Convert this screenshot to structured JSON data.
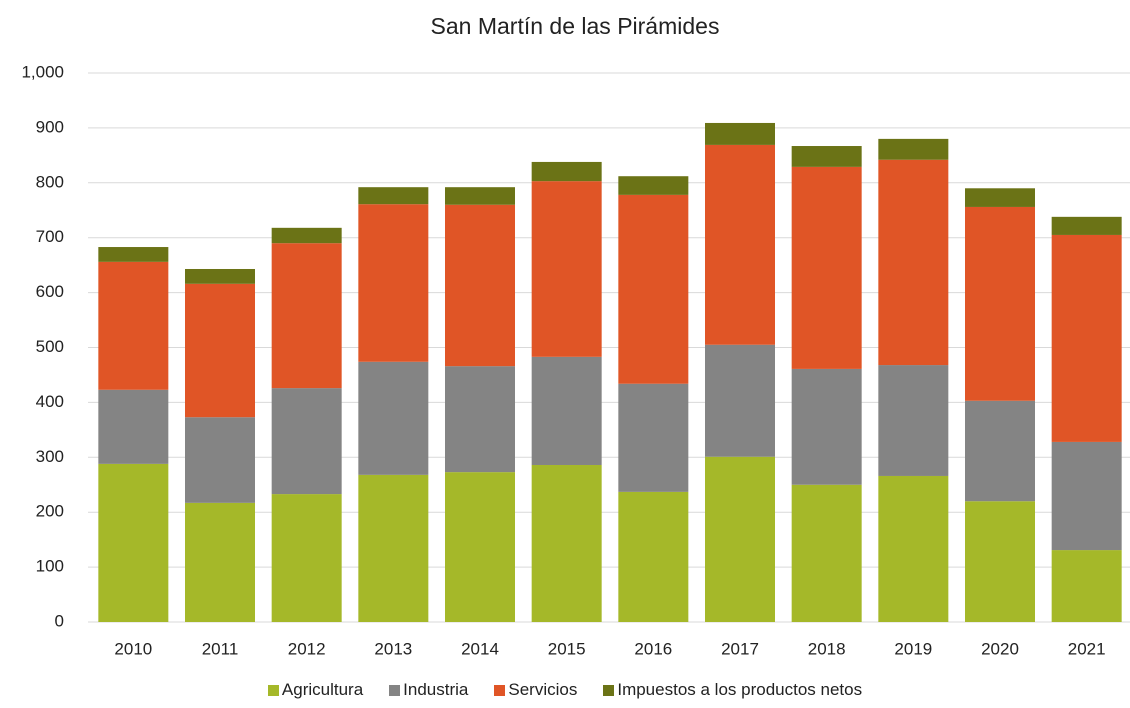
{
  "chart_data": {
    "type": "stacked_bar",
    "title": "San Martín de las Pirámides",
    "categories": [
      "2010",
      "2011",
      "2012",
      "2013",
      "2014",
      "2015",
      "2016",
      "2017",
      "2018",
      "2019",
      "2020",
      "2021"
    ],
    "series": [
      {
        "name": "Agricultura",
        "color": "#a5b829",
        "values": [
          288,
          217,
          233,
          268,
          273,
          286,
          237,
          301,
          250,
          266,
          220,
          131
        ]
      },
      {
        "name": "Industria",
        "color": "#848484",
        "values": [
          135,
          156,
          193,
          206,
          193,
          197,
          197,
          204,
          211,
          202,
          183,
          197
        ]
      },
      {
        "name": "Servicios",
        "color": "#e05526",
        "values": [
          233,
          243,
          264,
          287,
          294,
          320,
          344,
          364,
          368,
          374,
          353,
          377
        ]
      },
      {
        "name": "Impuestos a los productos netos",
        "color": "#6b7316",
        "values": [
          27,
          27,
          28,
          31,
          32,
          35,
          34,
          40,
          38,
          38,
          34,
          33
        ]
      }
    ],
    "ylim": [
      0,
      1000
    ],
    "yticks": [
      0,
      100,
      200,
      300,
      400,
      500,
      600,
      700,
      800,
      900,
      {
        "value": 1000,
        "label": "1,000"
      }
    ],
    "grid": true,
    "legend": "bottom"
  }
}
